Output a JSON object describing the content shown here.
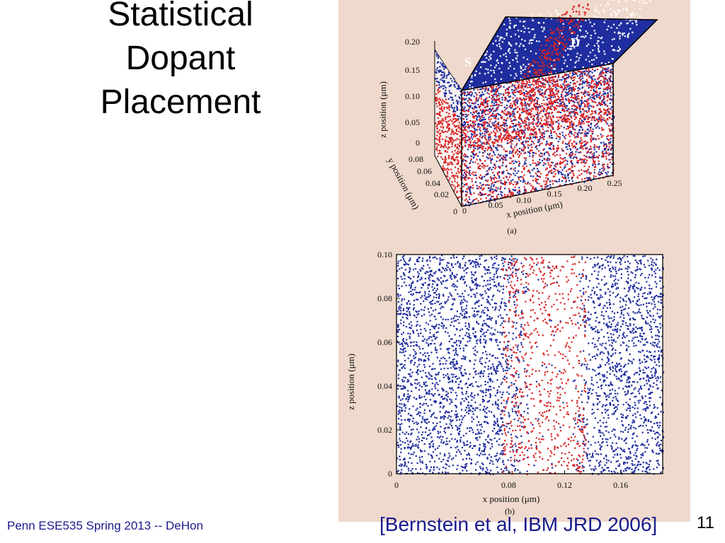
{
  "slide": {
    "title_lines": [
      "Statistical",
      "Dopant",
      "Placement"
    ],
    "footer": "Penn ESE535 Spring 2013 -- DeHon",
    "citation": "[Bernstein et al, IBM JRD 2006]",
    "page_number": "11"
  },
  "colors": {
    "panel_bg": "#efd9cc",
    "source_drain": "#1f2d9e",
    "channel_dopant": "#d92424",
    "text_blue": "#1a1a8c"
  },
  "chart_data": [
    {
      "type": "scatter",
      "title": "",
      "sublabel": "(a)",
      "xlabel": "x position  (μm)",
      "ylabel": "y position  (μm)",
      "zlabel": "z position  (μm)",
      "xticks": [
        "0",
        "0.05",
        "0.10",
        "0.15",
        "0.20",
        "0.25"
      ],
      "yticks": [
        "0",
        "0.02",
        "0.04",
        "0.06",
        "0.08"
      ],
      "zticks": [
        "0",
        "0.05",
        "0.10",
        "0.15",
        "0.20"
      ],
      "xlim": [
        0,
        0.25
      ],
      "ylim": [
        0,
        0.08
      ],
      "zlim": [
        0,
        0.2
      ],
      "region_labels": {
        "source": "S",
        "drain": "D"
      },
      "series": [
        {
          "color": "#1f2d9e",
          "regions": [
            [
              0,
              0.09
            ],
            [
              0.16,
              0.25
            ]
          ],
          "z_range": [
            0.12,
            0.2
          ]
        },
        {
          "color": "#d92424",
          "x_range": [
            0,
            0.25
          ],
          "z_range": [
            0,
            0.2
          ]
        }
      ]
    },
    {
      "type": "scatter",
      "title": "",
      "sublabel": "(b)",
      "xlabel": "x position  (μm)",
      "ylabel": "z position  (μm)",
      "xticks": [
        "0",
        "0.08",
        "0.12",
        "0.16"
      ],
      "xtick_values": [
        0,
        0.08,
        0.12,
        0.16
      ],
      "yticks": [
        "0",
        "0.02",
        "0.04",
        "0.06",
        "0.08",
        "0.10"
      ],
      "ytick_values": [
        0,
        0.02,
        0.04,
        0.06,
        0.08,
        0.1
      ],
      "xlim": [
        0,
        0.19
      ],
      "ylim": [
        0,
        0.1
      ],
      "series": [
        {
          "color": "#1f2d9e",
          "regions": [
            [
              0,
              0.075
            ],
            [
              0.12,
              0.19
            ]
          ]
        },
        {
          "color": "#d92424",
          "region": [
            0.075,
            0.13
          ]
        }
      ]
    }
  ]
}
